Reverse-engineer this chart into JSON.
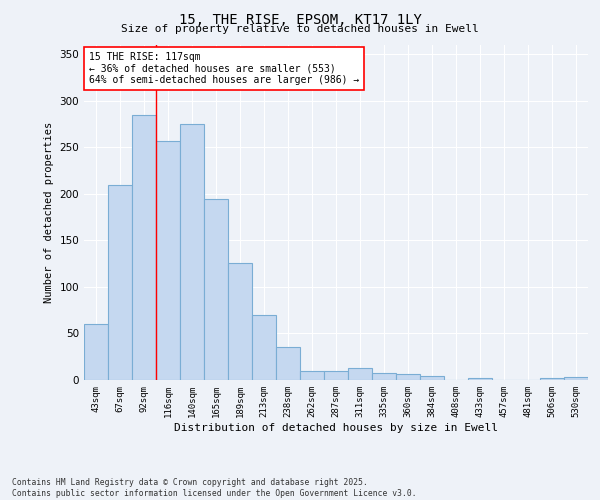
{
  "title_line1": "15, THE RISE, EPSOM, KT17 1LY",
  "title_line2": "Size of property relative to detached houses in Ewell",
  "xlabel": "Distribution of detached houses by size in Ewell",
  "ylabel": "Number of detached properties",
  "bar_color": "#c5d8f0",
  "bar_edge_color": "#7aadd4",
  "categories": [
    "43sqm",
    "67sqm",
    "92sqm",
    "116sqm",
    "140sqm",
    "165sqm",
    "189sqm",
    "213sqm",
    "238sqm",
    "262sqm",
    "287sqm",
    "311sqm",
    "335sqm",
    "360sqm",
    "384sqm",
    "408sqm",
    "433sqm",
    "457sqm",
    "481sqm",
    "506sqm",
    "530sqm"
  ],
  "values": [
    60,
    210,
    285,
    257,
    275,
    195,
    126,
    70,
    35,
    10,
    10,
    13,
    8,
    6,
    4,
    0,
    2,
    0,
    0,
    2,
    3
  ],
  "ylim": [
    0,
    360
  ],
  "yticks": [
    0,
    50,
    100,
    150,
    200,
    250,
    300,
    350
  ],
  "annotation_title": "15 THE RISE: 117sqm",
  "annotation_line2": "← 36% of detached houses are smaller (553)",
  "annotation_line3": "64% of semi-detached houses are larger (986) →",
  "marker_bar_index": 2,
  "bg_color": "#eef2f8",
  "footer": "Contains HM Land Registry data © Crown copyright and database right 2025.\nContains public sector information licensed under the Open Government Licence v3.0.",
  "grid_color": "#ffffff"
}
